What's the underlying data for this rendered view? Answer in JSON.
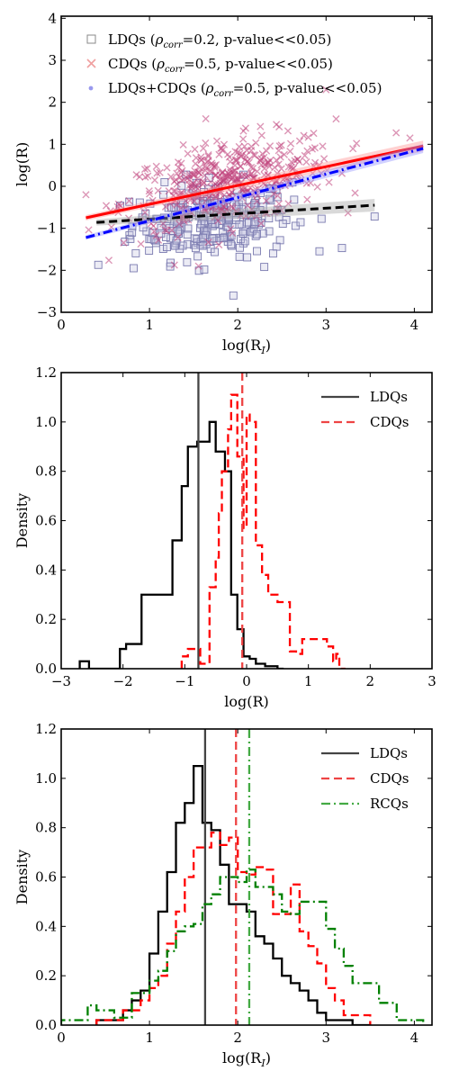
{
  "chart_data": [
    {
      "type": "scatter",
      "xlabel": "log(R_I)",
      "ylabel": "log(R)",
      "xlim": [
        0,
        4.2
      ],
      "ylim": [
        -3,
        4.05
      ],
      "xticks": [
        0,
        1,
        2,
        3,
        4
      ],
      "yticks": [
        -3,
        -2,
        -1,
        0,
        1,
        2,
        3,
        4
      ],
      "legend_position": "top-left",
      "series": [
        {
          "name": "LDQs (ρcorr=0.2, p-value<<0.05)",
          "label_html_parts": [
            "LDQs (",
            "ρ",
            "corr",
            "=0.2, p-value<<0.05)"
          ],
          "marker": "square",
          "color": "#7b7bb0",
          "center": {
            "x": 1.7,
            "y": -0.8,
            "sx": 0.45,
            "sy": 0.45,
            "n": 260
          },
          "fit": {
            "x": [
              0.4,
              3.55
            ],
            "y": [
              -0.86,
              -0.45
            ],
            "style": "dashed",
            "color": "#000000"
          },
          "outliers": [
            [
              0.42,
              -1.87
            ],
            [
              0.82,
              -1.95
            ],
            [
              1.62,
              -1.98
            ],
            [
              1.95,
              -2.6
            ],
            [
              2.3,
              -1.92
            ],
            [
              2.4,
              -1.6
            ],
            [
              3.18,
              -1.47
            ],
            [
              3.55,
              -0.72
            ]
          ]
        },
        {
          "name": "CDQs (ρcorr=0.5, p-value<<0.05)",
          "label_html_parts": [
            "CDQs (",
            "ρ",
            "corr",
            "=0.5, p-value<<0.05)"
          ],
          "marker": "x",
          "color": "#c0407a",
          "center": {
            "x": 1.9,
            "y": 0.1,
            "sx": 0.6,
            "sy": 0.5,
            "n": 420
          },
          "fit": {
            "x": [
              0.28,
              4.1
            ],
            "y": [
              -0.75,
              0.96
            ],
            "style": "solid",
            "color": "#ff0000"
          },
          "outliers": [
            [
              0.28,
              -0.2
            ],
            [
              3.95,
              1.15
            ],
            [
              3.0,
              2.3
            ]
          ]
        },
        {
          "name": "LDQs+CDQs (ρcorr=0.5, p-value<<0.05)",
          "label_html_parts": [
            "LDQs+CDQs (",
            "ρ",
            "corr",
            "=0.5, p-value<<0.05)"
          ],
          "marker": "dot",
          "color": "#9999ee",
          "fit": {
            "x": [
              0.28,
              4.1
            ],
            "y": [
              -1.22,
              0.9
            ],
            "style": "dashdot",
            "color": "#0000ff"
          }
        }
      ]
    },
    {
      "type": "histogram",
      "xlabel": "log(R)",
      "ylabel": "Density",
      "xlim": [
        -3,
        3
      ],
      "ylim": [
        0,
        1.2
      ],
      "xticks": [
        -3,
        -2,
        -1,
        0,
        1,
        2,
        3
      ],
      "yticks": [
        0.0,
        0.2,
        0.4,
        0.6,
        0.8,
        1.0,
        1.2
      ],
      "legend_position": "top-right",
      "series": [
        {
          "name": "LDQs",
          "color": "#000000",
          "style": "solid",
          "bin_edges": [
            -2.7,
            -2.55,
            -2.05,
            -1.95,
            -1.85,
            -1.7,
            -1.5,
            -1.2,
            -1.05,
            -0.95,
            -0.8,
            -0.6,
            -0.5,
            -0.35,
            -0.25,
            -0.15,
            -0.05,
            0.05,
            0.15,
            0.3,
            0.5,
            0.6
          ],
          "density": [
            0.03,
            0.0,
            0.08,
            0.1,
            0.1,
            0.3,
            0.3,
            0.52,
            0.74,
            0.9,
            0.92,
            1.0,
            0.88,
            0.8,
            0.3,
            0.16,
            0.05,
            0.04,
            0.02,
            0.01,
            0.0
          ],
          "median": -0.78,
          "median_color": "#444444"
        },
        {
          "name": "CDQs",
          "color": "#ff0000",
          "style": "dashed",
          "bin_edges": [
            -1.05,
            -0.95,
            -0.75,
            -0.6,
            -0.5,
            -0.45,
            -0.4,
            -0.3,
            -0.25,
            -0.15,
            -0.05,
            0.0,
            0.05,
            0.15,
            0.25,
            0.35,
            0.5,
            0.7,
            0.8,
            0.9,
            1.3,
            1.4,
            1.45,
            1.5,
            1.6
          ],
          "density": [
            0.05,
            0.08,
            0.02,
            0.33,
            0.45,
            0.63,
            0.8,
            0.97,
            1.11,
            0.86,
            0.57,
            1.03,
            1.0,
            0.5,
            0.38,
            0.3,
            0.27,
            0.07,
            0.06,
            0.12,
            0.09,
            0.03,
            0.06,
            0.0
          ],
          "median": -0.07,
          "median_color": "#ee4444"
        }
      ]
    },
    {
      "type": "histogram",
      "xlabel": "log(R_I)",
      "ylabel": "Density",
      "xlim": [
        0,
        4.2
      ],
      "ylim": [
        0,
        1.2
      ],
      "xticks": [
        0,
        1,
        2,
        3,
        4
      ],
      "yticks": [
        0.0,
        0.2,
        0.4,
        0.6,
        0.8,
        1.0,
        1.2
      ],
      "legend_position": "top-right",
      "series": [
        {
          "name": "LDQs",
          "color": "#000000",
          "style": "solid",
          "bin_edges": [
            0.4,
            0.7,
            0.8,
            0.9,
            1.0,
            1.1,
            1.2,
            1.3,
            1.4,
            1.5,
            1.6,
            1.7,
            1.8,
            1.9,
            2.0,
            2.1,
            2.2,
            2.3,
            2.4,
            2.5,
            2.6,
            2.7,
            2.8,
            2.9,
            3.0,
            3.3,
            3.5
          ],
          "density": [
            0.02,
            0.06,
            0.1,
            0.14,
            0.29,
            0.46,
            0.62,
            0.82,
            0.9,
            1.05,
            0.82,
            0.79,
            0.65,
            0.49,
            0.49,
            0.46,
            0.36,
            0.33,
            0.27,
            0.2,
            0.17,
            0.14,
            0.1,
            0.05,
            0.02,
            0.0
          ],
          "median": 1.63,
          "median_color": "#444444"
        },
        {
          "name": "CDQs",
          "color": "#ff0000",
          "style": "dashed",
          "bin_edges": [
            0.4,
            0.7,
            0.9,
            1.0,
            1.1,
            1.2,
            1.3,
            1.4,
            1.5,
            1.6,
            1.7,
            1.8,
            1.9,
            2.0,
            2.1,
            2.2,
            2.3,
            2.4,
            2.5,
            2.6,
            2.7,
            2.8,
            2.9,
            3.0,
            3.1,
            3.2,
            3.5
          ],
          "density": [
            0.02,
            0.06,
            0.1,
            0.15,
            0.2,
            0.33,
            0.46,
            0.6,
            0.72,
            0.72,
            0.78,
            0.73,
            0.76,
            0.62,
            0.61,
            0.64,
            0.63,
            0.45,
            0.45,
            0.57,
            0.38,
            0.32,
            0.25,
            0.15,
            0.1,
            0.04
          ],
          "median": 1.98,
          "median_color": "#ee4444"
        },
        {
          "name": "RCQs",
          "color": "#008000",
          "style": "dashdot",
          "bin_edges": [
            0.0,
            0.3,
            0.4,
            0.6,
            0.8,
            1.0,
            1.1,
            1.2,
            1.3,
            1.4,
            1.5,
            1.6,
            1.7,
            1.8,
            1.9,
            2.0,
            2.1,
            2.2,
            2.3,
            2.4,
            2.5,
            2.6,
            2.7,
            2.8,
            2.9,
            3.0,
            3.1,
            3.2,
            3.3,
            3.6,
            3.8,
            4.1
          ],
          "density": [
            0.02,
            0.08,
            0.06,
            0.03,
            0.13,
            0.18,
            0.22,
            0.3,
            0.38,
            0.4,
            0.41,
            0.49,
            0.53,
            0.6,
            0.6,
            0.58,
            0.63,
            0.56,
            0.56,
            0.53,
            0.46,
            0.45,
            0.5,
            0.5,
            0.5,
            0.39,
            0.31,
            0.24,
            0.17,
            0.09,
            0.02
          ],
          "median": 2.13,
          "median_color": "#44aa44"
        }
      ]
    }
  ]
}
